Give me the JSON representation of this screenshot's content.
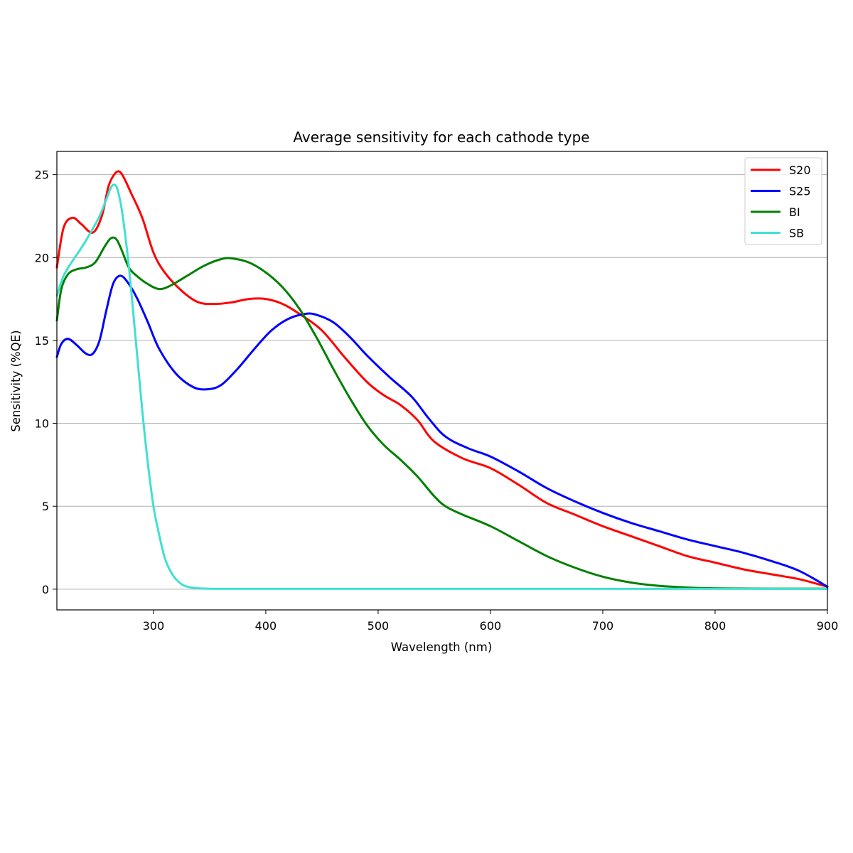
{
  "chart_data": {
    "type": "line",
    "title": "Average sensitivity for each cathode type",
    "xlabel": "Wavelength (nm)",
    "ylabel": "Sensitivity (%QE)",
    "xlim": [
      214,
      900
    ],
    "ylim": [
      -1.25,
      26.4
    ],
    "xticks": [
      300,
      400,
      500,
      600,
      700,
      800,
      900
    ],
    "yticks": [
      0,
      5,
      10,
      15,
      20,
      25
    ],
    "grid": "horizontal",
    "legend_position": "top-right",
    "series": [
      {
        "name": "S20",
        "color": "#ff0000",
        "x": [
          214,
          220,
          228,
          236,
          246,
          254,
          260,
          265,
          269,
          273,
          280,
          290,
          300,
          310,
          325,
          340,
          355,
          370,
          385,
          400,
          415,
          430,
          450,
          470,
          490,
          505,
          520,
          535,
          550,
          575,
          600,
          625,
          650,
          675,
          700,
          725,
          750,
          775,
          800,
          825,
          850,
          875,
          900
        ],
        "y": [
          19.4,
          21.8,
          22.4,
          22.0,
          21.5,
          22.5,
          24.3,
          25.0,
          25.2,
          24.9,
          23.9,
          22.4,
          20.3,
          19.1,
          18.0,
          17.3,
          17.2,
          17.3,
          17.5,
          17.5,
          17.2,
          16.6,
          15.6,
          14.0,
          12.5,
          11.7,
          11.1,
          10.2,
          8.9,
          7.9,
          7.3,
          6.3,
          5.2,
          4.5,
          3.8,
          3.2,
          2.6,
          2.0,
          1.6,
          1.2,
          0.9,
          0.6,
          0.15
        ]
      },
      {
        "name": "S25",
        "color": "#0000ff",
        "x": [
          214,
          218,
          224,
          232,
          240,
          246,
          252,
          258,
          264,
          270,
          276,
          285,
          295,
          305,
          320,
          335,
          347,
          360,
          375,
          390,
          405,
          420,
          435,
          445,
          460,
          475,
          490,
          510,
          530,
          545,
          560,
          580,
          600,
          625,
          650,
          675,
          700,
          725,
          750,
          775,
          800,
          825,
          850,
          875,
          900
        ],
        "y": [
          14.0,
          14.8,
          15.1,
          14.7,
          14.2,
          14.2,
          15.0,
          16.8,
          18.4,
          18.9,
          18.6,
          17.6,
          16.1,
          14.5,
          13.0,
          12.2,
          12.05,
          12.3,
          13.3,
          14.5,
          15.6,
          16.3,
          16.6,
          16.55,
          16.1,
          15.2,
          14.1,
          12.8,
          11.6,
          10.3,
          9.2,
          8.5,
          8.0,
          7.1,
          6.1,
          5.3,
          4.6,
          4.0,
          3.5,
          3.0,
          2.6,
          2.2,
          1.7,
          1.1,
          0.15
        ]
      },
      {
        "name": "BI",
        "color": "#008000",
        "x": [
          214,
          218,
          224,
          232,
          240,
          248,
          256,
          261,
          265,
          268,
          272,
          278,
          285,
          295,
          305,
          315,
          330,
          345,
          360,
          370,
          385,
          400,
          415,
          430,
          445,
          460,
          475,
          490,
          505,
          520,
          535,
          550,
          560,
          575,
          600,
          625,
          650,
          675,
          700,
          725,
          750,
          775,
          800,
          850,
          900
        ],
        "y": [
          16.2,
          18.1,
          19.0,
          19.3,
          19.4,
          19.7,
          20.6,
          21.1,
          21.2,
          21.0,
          20.4,
          19.4,
          18.9,
          18.4,
          18.1,
          18.3,
          18.9,
          19.5,
          19.9,
          19.95,
          19.7,
          19.1,
          18.2,
          16.9,
          15.2,
          13.3,
          11.5,
          9.9,
          8.7,
          7.8,
          6.8,
          5.6,
          5.0,
          4.5,
          3.8,
          2.9,
          2.0,
          1.3,
          0.75,
          0.4,
          0.2,
          0.1,
          0.05,
          0.03,
          0.03
        ]
      },
      {
        "name": "SB",
        "color": "#40e0d0",
        "x": [
          214,
          220,
          228,
          236,
          244,
          252,
          258,
          262,
          265,
          268,
          272,
          278,
          284,
          290,
          295,
          300,
          305,
          310,
          315,
          320,
          325,
          330,
          335,
          340,
          348,
          360,
          380,
          400,
          450,
          500,
          600,
          700,
          800,
          900
        ],
        "y": [
          17.7,
          18.9,
          19.8,
          20.6,
          21.5,
          22.5,
          23.5,
          24.2,
          24.4,
          24.1,
          22.8,
          19.5,
          15.2,
          10.8,
          7.6,
          5.0,
          3.3,
          1.9,
          1.1,
          0.6,
          0.3,
          0.15,
          0.09,
          0.05,
          0.03,
          0.02,
          0.02,
          0.02,
          0.02,
          0.02,
          0.02,
          0.02,
          0.02,
          0.02
        ]
      }
    ]
  }
}
